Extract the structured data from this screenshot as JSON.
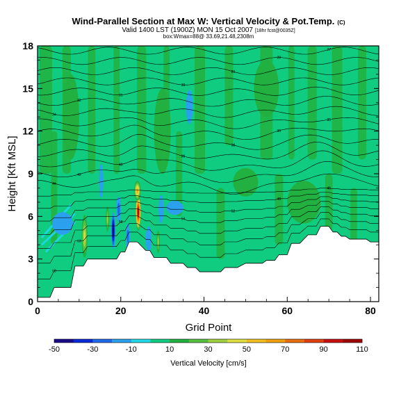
{
  "chart_data": {
    "type": "contour",
    "title": "Wind-Parallel Section at Max W: Vertical Velocity & Pot.Temp.",
    "title_mark": "(C)",
    "subtitle": "Valid 1400 LST (1900Z) MON 15 Oct 2007",
    "subtitle_note": "[18hr fcst@0035Z]",
    "subtitle2": "box:Wmax=88@ 33.69,21.48,2308m",
    "xlabel": "Grid Point",
    "ylabel": "Height [Kft MSL]",
    "xlim": [
      0,
      82
    ],
    "ylim": [
      0,
      18
    ],
    "x_ticks": [
      0,
      20,
      40,
      60,
      80
    ],
    "x_tick_labels": [
      "0",
      "20",
      "40",
      "60",
      "80"
    ],
    "y_ticks": [
      0,
      3,
      6,
      9,
      12,
      15,
      18
    ],
    "y_tick_labels": [
      "0",
      "3",
      "6",
      "9",
      "12",
      "15",
      "18"
    ],
    "colorbar": {
      "title": "Vertical Velocity [cm/s]",
      "levels": [
        -50,
        -40,
        -30,
        -20,
        -10,
        0,
        10,
        20,
        30,
        40,
        50,
        60,
        70,
        80,
        90,
        100,
        110
      ],
      "tick_labels": [
        "-50",
        "-30",
        "-10",
        "10",
        "30",
        "50",
        "70",
        "90",
        "110"
      ],
      "colors": [
        "#1a0a8c",
        "#0a2ad8",
        "#1e6ae8",
        "#2aa0ee",
        "#20d8e8",
        "#10cc80",
        "#22b040",
        "#58c040",
        "#a0d040",
        "#e0e040",
        "#f0c020",
        "#f0a010",
        "#e87010",
        "#e04010",
        "#c81010",
        "#a00808"
      ]
    },
    "terrain": [
      [
        0,
        0.3
      ],
      [
        3,
        0.3
      ],
      [
        4,
        1.0
      ],
      [
        8,
        1.0
      ],
      [
        9,
        2.5
      ],
      [
        11,
        2.5
      ],
      [
        12,
        3.0
      ],
      [
        19,
        3.0
      ],
      [
        20,
        3.5
      ],
      [
        21,
        3.5
      ],
      [
        22,
        4.2
      ],
      [
        24,
        4.2
      ],
      [
        26,
        3.6
      ],
      [
        27,
        3.6
      ],
      [
        28,
        3.1
      ],
      [
        30,
        3.1
      ],
      [
        31,
        3.1
      ],
      [
        32,
        2.7
      ],
      [
        35,
        2.7
      ],
      [
        36,
        2.4
      ],
      [
        38,
        2.4
      ],
      [
        39,
        2.1
      ],
      [
        44,
        2.1
      ],
      [
        45,
        2.4
      ],
      [
        48,
        2.4
      ],
      [
        50,
        2.7
      ],
      [
        54,
        2.7
      ],
      [
        55,
        2.9
      ],
      [
        57,
        2.9
      ],
      [
        58,
        3.3
      ],
      [
        60,
        3.3
      ],
      [
        61,
        4.1
      ],
      [
        63,
        4.1
      ],
      [
        65,
        4.7
      ],
      [
        67,
        4.7
      ],
      [
        68,
        5.3
      ],
      [
        70,
        5.3
      ],
      [
        71,
        4.9
      ],
      [
        72,
        4.9
      ],
      [
        73,
        4.6
      ],
      [
        74,
        4.6
      ],
      [
        75,
        4.4
      ],
      [
        79,
        4.4
      ],
      [
        80,
        4.2
      ],
      [
        82,
        4.2
      ]
    ],
    "isentropes": [
      {
        "label": "68",
        "level": 1
      },
      {
        "label": "63",
        "level": 2
      },
      {
        "label": "58",
        "level": 3
      },
      {
        "label": "54",
        "level": 4
      },
      {
        "label": "52",
        "level": 5
      },
      {
        "label": "49",
        "level": 6
      },
      {
        "label": "46",
        "level": 7
      },
      {
        "label": "44",
        "level": 8
      },
      {
        "label": "42",
        "level": 9
      },
      {
        "label": "40",
        "level": 10
      },
      {
        "label": "39",
        "level": 11
      },
      {
        "label": "38",
        "level": 12
      },
      {
        "label": "36",
        "level": 13
      },
      {
        "label": "35",
        "level": 14
      },
      {
        "label": "34",
        "level": 15
      },
      {
        "label": "32",
        "level": 16
      },
      {
        "label": "31",
        "level": 17
      },
      {
        "label": "30",
        "level": 18
      },
      {
        "label": "29",
        "level": 19
      },
      {
        "label": "28",
        "level": 20
      },
      {
        "label": "27",
        "level": 21
      },
      {
        "label": "26",
        "level": 22
      }
    ],
    "velocity_features": [
      {
        "x": 24.2,
        "y": 6.3,
        "value": 110,
        "sx": 0.7,
        "sy": 1.3
      },
      {
        "x": 24.0,
        "y": 7.8,
        "value": 60,
        "sx": 0.8,
        "sy": 0.7
      },
      {
        "x": 11.3,
        "y": 4.6,
        "value": 40,
        "sx": 0.7,
        "sy": 1.5
      },
      {
        "x": 18.2,
        "y": 5.0,
        "value": -50,
        "sx": 0.5,
        "sy": 1.3
      },
      {
        "x": 19.5,
        "y": 6.5,
        "value": -25,
        "sx": 0.6,
        "sy": 0.9
      },
      {
        "x": 16.8,
        "y": 5.8,
        "value": 30,
        "sx": 0.4,
        "sy": 0.9
      },
      {
        "x": 21.7,
        "y": 4.6,
        "value": -22,
        "sx": 0.5,
        "sy": 0.9
      },
      {
        "x": 26.7,
        "y": 4.4,
        "value": -18,
        "sx": 0.7,
        "sy": 0.9
      },
      {
        "x": 29.0,
        "y": 4.2,
        "value": 35,
        "sx": 0.4,
        "sy": 0.8
      },
      {
        "x": 29.7,
        "y": 6.5,
        "value": -12,
        "sx": 0.6,
        "sy": 1.0
      },
      {
        "x": 33.0,
        "y": 6.6,
        "value": -15,
        "sx": 2.0,
        "sy": 0.5
      },
      {
        "x": 6.0,
        "y": 5.5,
        "value": -10,
        "sx": 2.5,
        "sy": 0.8
      },
      {
        "x": 15.3,
        "y": 8.5,
        "value": -8,
        "sx": 0.5,
        "sy": 1.2
      },
      {
        "x": 36.5,
        "y": 13.7,
        "value": -10,
        "sx": 0.8,
        "sy": 1.2
      },
      {
        "x": 50.0,
        "y": 8.4,
        "value": 15,
        "sx": 3.0,
        "sy": 1.0
      },
      {
        "x": 64.0,
        "y": 7.0,
        "value": 12,
        "sx": 4.0,
        "sy": 1.5
      },
      {
        "x": 30.0,
        "y": 12.0,
        "value": 12,
        "sx": 2.0,
        "sy": 3.0
      },
      {
        "x": 8.0,
        "y": 13.0,
        "value": 10,
        "sx": 2.0,
        "sy": 3.0
      },
      {
        "x": 55.0,
        "y": 15.0,
        "value": 8,
        "sx": 3.0,
        "sy": 2.0
      }
    ]
  }
}
